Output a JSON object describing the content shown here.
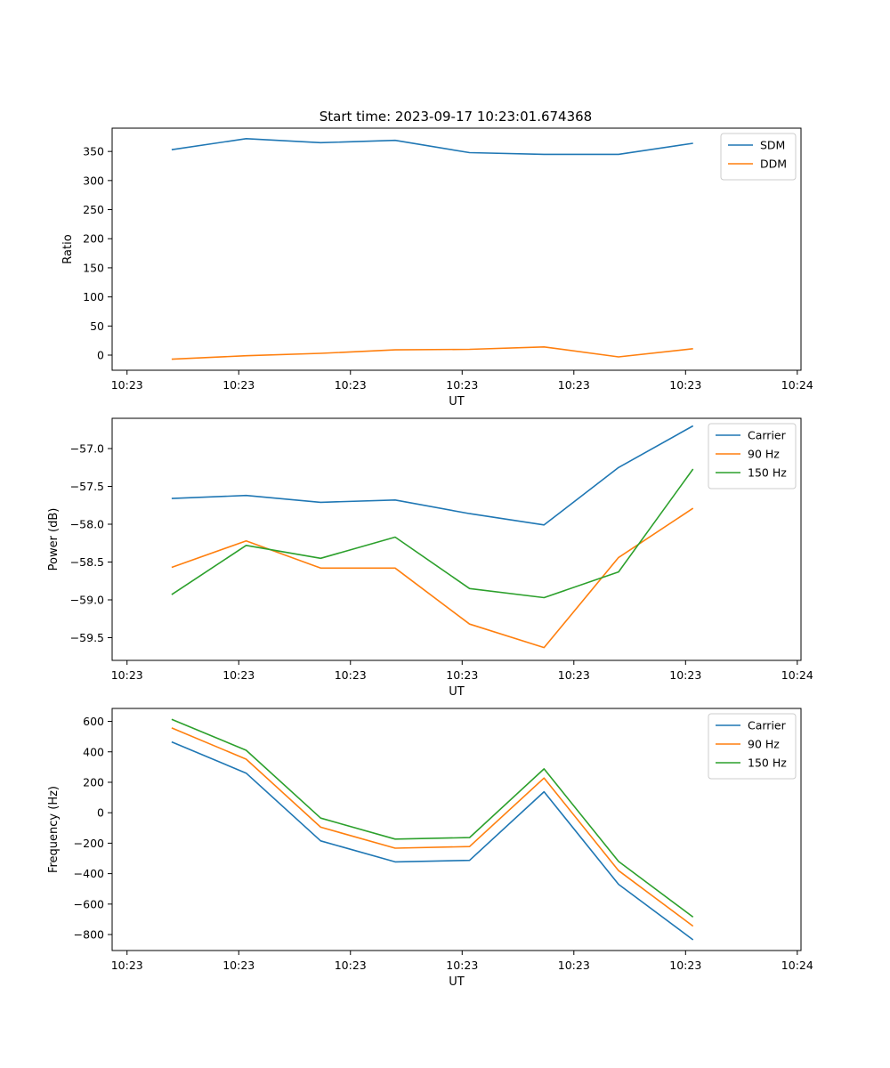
{
  "figure_title": "Start time: 2023-09-17 10:23:01.674368",
  "colors": {
    "blue": "#1f77b4",
    "orange": "#ff7f0e",
    "green": "#2ca02c"
  },
  "chart_data": [
    {
      "type": "line",
      "xlabel": "UT",
      "ylabel": "Ratio",
      "x": [
        1,
        2,
        3,
        4,
        5,
        6,
        7,
        8
      ],
      "xlim": [
        0.2,
        9.45
      ],
      "xticks": [
        0.4,
        1.9,
        3.4,
        4.9,
        6.4,
        7.9,
        9.4
      ],
      "xtick_labels": [
        "10:23",
        "10:23",
        "10:23",
        "10:23",
        "10:23",
        "10:23",
        "10:24"
      ],
      "ylim": [
        -26,
        390
      ],
      "yticks": [
        0,
        50,
        100,
        150,
        200,
        250,
        300,
        350
      ],
      "legend": "top-right",
      "series": [
        {
          "name": "SDM",
          "color": "#1f77b4",
          "values": [
            353,
            372,
            365,
            369,
            348,
            345,
            345,
            364
          ]
        },
        {
          "name": "DDM",
          "color": "#ff7f0e",
          "values": [
            -7,
            -1,
            3,
            9,
            10,
            14,
            -3,
            11
          ]
        }
      ]
    },
    {
      "type": "line",
      "xlabel": "UT",
      "ylabel": "Power (dB)",
      "x": [
        1,
        2,
        3,
        4,
        5,
        6,
        7,
        8
      ],
      "xlim": [
        0.2,
        9.45
      ],
      "xticks": [
        0.4,
        1.9,
        3.4,
        4.9,
        6.4,
        7.9,
        9.4
      ],
      "xtick_labels": [
        "10:23",
        "10:23",
        "10:23",
        "10:23",
        "10:23",
        "10:23",
        "10:24"
      ],
      "ylim": [
        -59.8,
        -56.6
      ],
      "yticks": [
        -59.5,
        -59.0,
        -58.5,
        -58.0,
        -57.5,
        -57.0
      ],
      "ytick_labels": [
        "−59.5",
        "−59.0",
        "−58.5",
        "−58.0",
        "−57.5",
        "−57.0"
      ],
      "legend": "top-right",
      "series": [
        {
          "name": "Carrier",
          "color": "#1f77b4",
          "values": [
            -57.66,
            -57.62,
            -57.71,
            -57.68,
            -57.86,
            -58.01,
            -57.25,
            -56.7
          ]
        },
        {
          "name": "90 Hz",
          "color": "#ff7f0e",
          "values": [
            -58.57,
            -58.22,
            -58.58,
            -58.58,
            -59.32,
            -59.63,
            -58.44,
            -57.79
          ]
        },
        {
          "name": "150 Hz",
          "color": "#2ca02c",
          "values": [
            -58.93,
            -58.28,
            -58.45,
            -58.17,
            -58.85,
            -58.97,
            -58.63,
            -57.27
          ]
        }
      ]
    },
    {
      "type": "line",
      "xlabel": "UT",
      "ylabel": "Frequency (Hz)",
      "x": [
        1,
        2,
        3,
        4,
        5,
        6,
        7,
        8
      ],
      "xlim": [
        0.2,
        9.45
      ],
      "xticks": [
        0.4,
        1.9,
        3.4,
        4.9,
        6.4,
        7.9,
        9.4
      ],
      "xtick_labels": [
        "10:23",
        "10:23",
        "10:23",
        "10:23",
        "10:23",
        "10:23",
        "10:24"
      ],
      "ylim": [
        -905,
        685
      ],
      "yticks": [
        -800,
        -600,
        -400,
        -200,
        0,
        200,
        400,
        600
      ],
      "ytick_labels": [
        "−800",
        "−600",
        "−400",
        "−200",
        "0",
        "200",
        "400",
        "600"
      ],
      "legend": "top-right",
      "series": [
        {
          "name": "Carrier",
          "color": "#1f77b4",
          "values": [
            465,
            260,
            -185,
            -323,
            -313,
            138,
            -470,
            -835
          ]
        },
        {
          "name": "90 Hz",
          "color": "#ff7f0e",
          "values": [
            557,
            352,
            -95,
            -233,
            -222,
            228,
            -380,
            -745
          ]
        },
        {
          "name": "150 Hz",
          "color": "#2ca02c",
          "values": [
            613,
            410,
            -35,
            -173,
            -163,
            288,
            -320,
            -685
          ]
        }
      ]
    }
  ]
}
